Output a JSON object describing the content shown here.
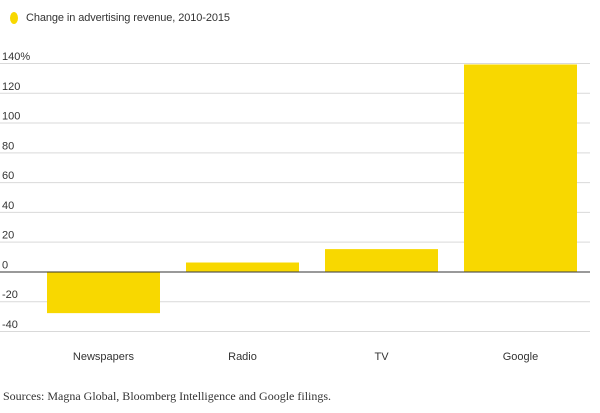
{
  "legend": {
    "label": "Change in advertising revenue, 2010-2015",
    "color": "#f8d800"
  },
  "source": "Sources: Magna Global, Bloomberg Intelligence and Google filings.",
  "chart_data": {
    "type": "bar",
    "categories": [
      "Newspapers",
      "Radio",
      "TV",
      "Google"
    ],
    "series": [
      {
        "name": "Change in advertising revenue, 2010-2015",
        "values": [
          -28,
          6,
          15,
          139
        ]
      }
    ],
    "ylim": [
      -40,
      140
    ],
    "yticks": [
      -40,
      -20,
      0,
      20,
      40,
      60,
      80,
      100,
      120,
      140
    ],
    "ytick_labels": [
      "-40",
      "-20",
      "0",
      "20",
      "40",
      "60",
      "80",
      "100",
      "120",
      "140%"
    ],
    "title": "",
    "xlabel": "",
    "ylabel": "",
    "grid": true,
    "bar_color": "#f8d800",
    "grid_color": "#d9d9d9",
    "baseline_color": "#333333"
  }
}
